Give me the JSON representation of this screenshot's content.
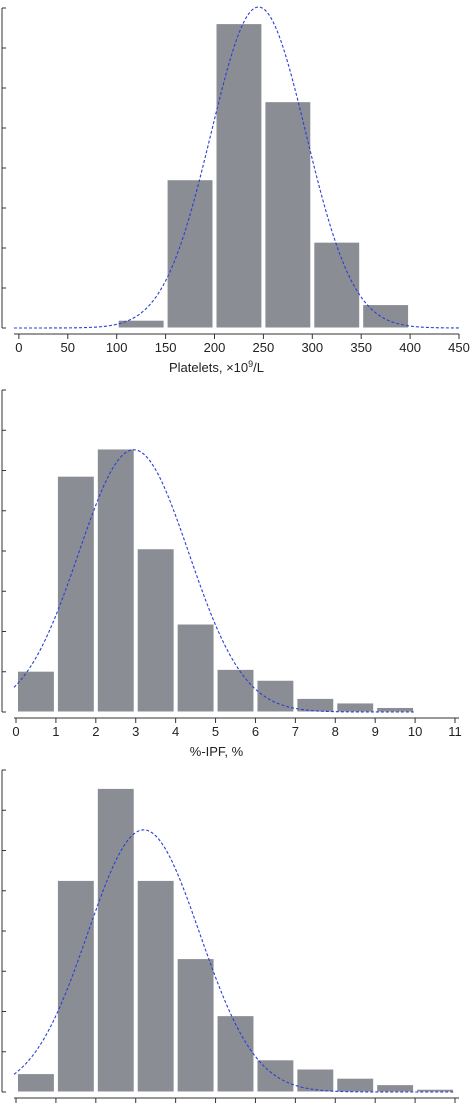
{
  "colors": {
    "bar_fill": "#8a8d93",
    "bar_stroke": "#ffffff",
    "curve": "#2a3fd6",
    "axis": "#333333"
  },
  "chart_data": [
    {
      "type": "bar",
      "xlabel_parts": [
        "Platelets, ×10",
        "9",
        "/L"
      ],
      "xlim": [
        -5,
        450
      ],
      "ylim": [
        0,
        0.0082
      ],
      "x_ticks": [
        "0",
        "50",
        "100",
        "150",
        "200",
        "250",
        "300",
        "350",
        "400",
        "450"
      ],
      "x_tick_values": [
        0,
        50,
        100,
        150,
        200,
        250,
        300,
        350,
        400,
        450
      ],
      "bins": [
        {
          "x0": 100,
          "x1": 150,
          "value": 0.0002
        },
        {
          "x0": 150,
          "x1": 200,
          "value": 0.0038
        },
        {
          "x0": 200,
          "x1": 250,
          "value": 0.0078
        },
        {
          "x0": 250,
          "x1": 300,
          "value": 0.0058
        },
        {
          "x0": 300,
          "x1": 350,
          "value": 0.0022
        },
        {
          "x0": 350,
          "x1": 400,
          "value": 0.0006
        }
      ],
      "curve": {
        "type": "normal",
        "mean": 245,
        "sd": 48.5,
        "x_range": [
          -5,
          450
        ]
      }
    },
    {
      "type": "bar",
      "xlabel_parts": [
        "%-IPF, %"
      ],
      "xlim": [
        -0.05,
        11.1
      ],
      "ylim": [
        0,
        0.355
      ],
      "x_ticks": [
        "0",
        "1",
        "2",
        "3",
        "4",
        "5",
        "6",
        "7",
        "8",
        "9",
        "10",
        "11"
      ],
      "x_tick_values": [
        0,
        1,
        2,
        3,
        4,
        5,
        6,
        7,
        8,
        9,
        10,
        11
      ],
      "bins": [
        {
          "x0": 0,
          "x1": 1,
          "value": 0.045
        },
        {
          "x0": 1,
          "x1": 2,
          "value": 0.26
        },
        {
          "x0": 2,
          "x1": 3,
          "value": 0.29
        },
        {
          "x0": 3,
          "x1": 4,
          "value": 0.18
        },
        {
          "x0": 4,
          "x1": 5,
          "value": 0.097
        },
        {
          "x0": 5,
          "x1": 6,
          "value": 0.047
        },
        {
          "x0": 6,
          "x1": 7,
          "value": 0.035
        },
        {
          "x0": 7,
          "x1": 8,
          "value": 0.015
        },
        {
          "x0": 8,
          "x1": 9,
          "value": 0.01
        },
        {
          "x0": 9,
          "x1": 10,
          "value": 0.005
        }
      ],
      "curve": {
        "type": "normal",
        "mean": 2.95,
        "sd": 1.38,
        "x_range": [
          -0.05,
          10.0
        ]
      }
    },
    {
      "type": "bar",
      "xlabel_parts": [],
      "xlim": [
        -0.05,
        11.1
      ],
      "ylim": [
        0,
        0.35
      ],
      "x_ticks": [],
      "x_tick_values": [
        0,
        1,
        2,
        3,
        4,
        5,
        6,
        7,
        8,
        9,
        10,
        11
      ],
      "bins": [
        {
          "x0": 0,
          "x1": 1,
          "value": 0.02
        },
        {
          "x0": 1,
          "x1": 2,
          "value": 0.23
        },
        {
          "x0": 2,
          "x1": 3,
          "value": 0.33
        },
        {
          "x0": 3,
          "x1": 4,
          "value": 0.23
        },
        {
          "x0": 4,
          "x1": 5,
          "value": 0.145
        },
        {
          "x0": 5,
          "x1": 6,
          "value": 0.083
        },
        {
          "x0": 6,
          "x1": 7,
          "value": 0.035
        },
        {
          "x0": 7,
          "x1": 8,
          "value": 0.025
        },
        {
          "x0": 8,
          "x1": 9,
          "value": 0.015
        },
        {
          "x0": 9,
          "x1": 10,
          "value": 0.008
        },
        {
          "x0": 10,
          "x1": 11,
          "value": 0.003
        }
      ],
      "curve": {
        "type": "normal",
        "mean": 3.2,
        "sd": 1.4,
        "x_range": [
          -0.05,
          11.0
        ]
      }
    }
  ]
}
